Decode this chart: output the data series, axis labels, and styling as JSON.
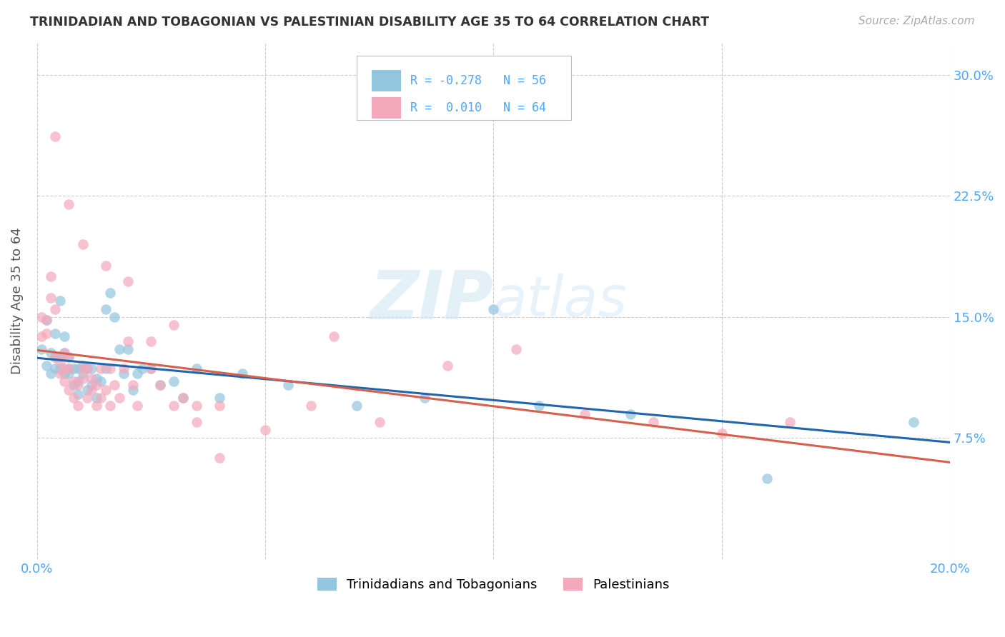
{
  "title": "TRINIDADIAN AND TOBAGONIAN VS PALESTINIAN DISABILITY AGE 35 TO 64 CORRELATION CHART",
  "source": "Source: ZipAtlas.com",
  "ylabel": "Disability Age 35 to 64",
  "xlim": [
    0.0,
    0.2
  ],
  "ylim": [
    0.0,
    0.32
  ],
  "xticks": [
    0.0,
    0.05,
    0.1,
    0.15,
    0.2
  ],
  "xtick_labels": [
    "0.0%",
    "",
    "",
    "",
    "20.0%"
  ],
  "yticks": [
    0.075,
    0.15,
    0.225,
    0.3
  ],
  "ytick_labels": [
    "7.5%",
    "15.0%",
    "22.5%",
    "30.0%"
  ],
  "watermark": "ZIPatlas",
  "legend_label1": "Trinidadians and Tobagonians",
  "legend_label2": "Palestinians",
  "color_blue": "#92c5de",
  "color_pink": "#f4a8bb",
  "line_blue": "#2166ac",
  "line_pink": "#d6604d",
  "title_color": "#333333",
  "axis_label_color": "#4da6ff",
  "background_color": "#ffffff",
  "grid_color": "#cccccc",
  "blue_points_x": [
    0.001,
    0.002,
    0.002,
    0.003,
    0.003,
    0.004,
    0.004,
    0.004,
    0.005,
    0.005,
    0.005,
    0.006,
    0.006,
    0.006,
    0.007,
    0.007,
    0.007,
    0.008,
    0.008,
    0.009,
    0.009,
    0.009,
    0.01,
    0.01,
    0.011,
    0.011,
    0.012,
    0.012,
    0.013,
    0.013,
    0.014,
    0.015,
    0.015,
    0.016,
    0.017,
    0.018,
    0.019,
    0.02,
    0.021,
    0.022,
    0.023,
    0.025,
    0.027,
    0.03,
    0.032,
    0.035,
    0.04,
    0.045,
    0.055,
    0.07,
    0.085,
    0.1,
    0.11,
    0.13,
    0.16,
    0.192
  ],
  "blue_points_y": [
    0.13,
    0.148,
    0.12,
    0.128,
    0.115,
    0.14,
    0.118,
    0.125,
    0.16,
    0.118,
    0.125,
    0.138,
    0.115,
    0.128,
    0.115,
    0.118,
    0.125,
    0.108,
    0.118,
    0.102,
    0.11,
    0.118,
    0.12,
    0.115,
    0.105,
    0.118,
    0.108,
    0.118,
    0.1,
    0.112,
    0.11,
    0.118,
    0.155,
    0.165,
    0.15,
    0.13,
    0.115,
    0.13,
    0.105,
    0.115,
    0.118,
    0.118,
    0.108,
    0.11,
    0.1,
    0.118,
    0.1,
    0.115,
    0.108,
    0.095,
    0.1,
    0.155,
    0.095,
    0.09,
    0.05,
    0.085
  ],
  "pink_points_x": [
    0.001,
    0.001,
    0.002,
    0.002,
    0.003,
    0.003,
    0.004,
    0.004,
    0.005,
    0.005,
    0.006,
    0.006,
    0.006,
    0.007,
    0.007,
    0.007,
    0.008,
    0.008,
    0.009,
    0.009,
    0.01,
    0.01,
    0.011,
    0.011,
    0.012,
    0.012,
    0.013,
    0.013,
    0.014,
    0.014,
    0.015,
    0.016,
    0.016,
    0.017,
    0.018,
    0.019,
    0.02,
    0.021,
    0.022,
    0.025,
    0.027,
    0.03,
    0.032,
    0.035,
    0.04,
    0.05,
    0.06,
    0.075,
    0.09,
    0.105,
    0.12,
    0.135,
    0.15,
    0.165,
    0.004,
    0.007,
    0.01,
    0.015,
    0.02,
    0.025,
    0.03,
    0.035,
    0.04,
    0.065
  ],
  "pink_points_y": [
    0.15,
    0.138,
    0.14,
    0.148,
    0.175,
    0.162,
    0.125,
    0.155,
    0.115,
    0.122,
    0.11,
    0.118,
    0.128,
    0.105,
    0.118,
    0.125,
    0.1,
    0.11,
    0.095,
    0.108,
    0.112,
    0.118,
    0.1,
    0.118,
    0.105,
    0.112,
    0.095,
    0.108,
    0.1,
    0.118,
    0.105,
    0.095,
    0.118,
    0.108,
    0.1,
    0.118,
    0.135,
    0.108,
    0.095,
    0.118,
    0.108,
    0.095,
    0.1,
    0.085,
    0.095,
    0.08,
    0.095,
    0.085,
    0.12,
    0.13,
    0.09,
    0.085,
    0.078,
    0.085,
    0.262,
    0.22,
    0.195,
    0.182,
    0.172,
    0.135,
    0.145,
    0.095,
    0.063,
    0.138
  ]
}
